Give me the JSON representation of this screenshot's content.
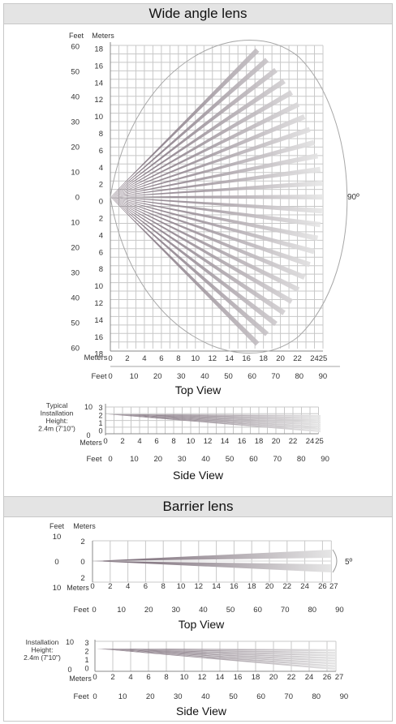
{
  "sections": {
    "wide": {
      "title": "Wide angle lens",
      "top_view": {
        "caption": "Top View",
        "feet_label": "Feet",
        "meters_label": "Meters",
        "left_feet_ticks": [
          "60",
          "50",
          "40",
          "30",
          "20",
          "10",
          "0",
          "10",
          "20",
          "30",
          "40",
          "50",
          "60"
        ],
        "left_meter_ticks": [
          "18",
          "16",
          "14",
          "12",
          "10",
          "8",
          "6",
          "4",
          "2",
          "0",
          "2",
          "4",
          "6",
          "8",
          "10",
          "12",
          "14",
          "16",
          "18"
        ],
        "bottom_meter_ticks": [
          "0",
          "2",
          "4",
          "6",
          "8",
          "10",
          "12",
          "14",
          "16",
          "18",
          "20",
          "22",
          "24",
          "25"
        ],
        "bottom_feet_ticks": [
          "0",
          "10",
          "20",
          "30",
          "40",
          "50",
          "60",
          "70",
          "80",
          "90"
        ],
        "angle_label": "90º"
      },
      "side_view": {
        "caption": "Side View",
        "height_label": [
          "Typical",
          "Installation",
          "Height:",
          "2.4m (7'10\")"
        ],
        "feet_ticks": [
          "10",
          "0"
        ],
        "meter_ticks": [
          "3",
          "2",
          "1",
          "0"
        ],
        "meters_label": "Meters",
        "feet_label": "Feet",
        "bottom_meter_ticks": [
          "0",
          "2",
          "4",
          "6",
          "8",
          "10",
          "12",
          "14",
          "16",
          "18",
          "20",
          "22",
          "24",
          "25"
        ],
        "bottom_feet_ticks": [
          "0",
          "10",
          "20",
          "30",
          "40",
          "50",
          "60",
          "70",
          "80",
          "90"
        ]
      }
    },
    "barrier": {
      "title": "Barrier lens",
      "top_view": {
        "caption": "Top View",
        "feet_label": "Feet",
        "meters_label": "Meters",
        "left_feet_ticks": [
          "10",
          "0",
          "10"
        ],
        "left_meter_ticks": [
          "2",
          "0",
          "2"
        ],
        "bottom_meter_ticks": [
          "0",
          "2",
          "4",
          "6",
          "8",
          "10",
          "12",
          "14",
          "16",
          "18",
          "20",
          "22",
          "24",
          "26",
          "27"
        ],
        "bottom_feet_ticks": [
          "0",
          "10",
          "20",
          "30",
          "40",
          "50",
          "60",
          "70",
          "80",
          "90"
        ],
        "angle_label": "5º"
      },
      "side_view": {
        "caption": "Side View",
        "height_label": [
          "Installation",
          "Height:",
          "2.4m (7'10\")"
        ],
        "feet_ticks": [
          "10",
          "0"
        ],
        "meter_ticks": [
          "3",
          "2",
          "1",
          "0"
        ],
        "meters_label": "Meters",
        "feet_label": "Feet",
        "bottom_meter_ticks": [
          "0",
          "2",
          "4",
          "6",
          "8",
          "10",
          "12",
          "14",
          "16",
          "18",
          "20",
          "22",
          "24",
          "26",
          "27"
        ],
        "bottom_feet_ticks": [
          "0",
          "10",
          "20",
          "30",
          "40",
          "50",
          "60",
          "70",
          "80",
          "90"
        ]
      }
    }
  },
  "colors": {
    "beam_dark": "#6e5d6b",
    "beam_light": "#e6e6e6",
    "grid": "#c8c8c8",
    "band": "#e4e4e4"
  }
}
